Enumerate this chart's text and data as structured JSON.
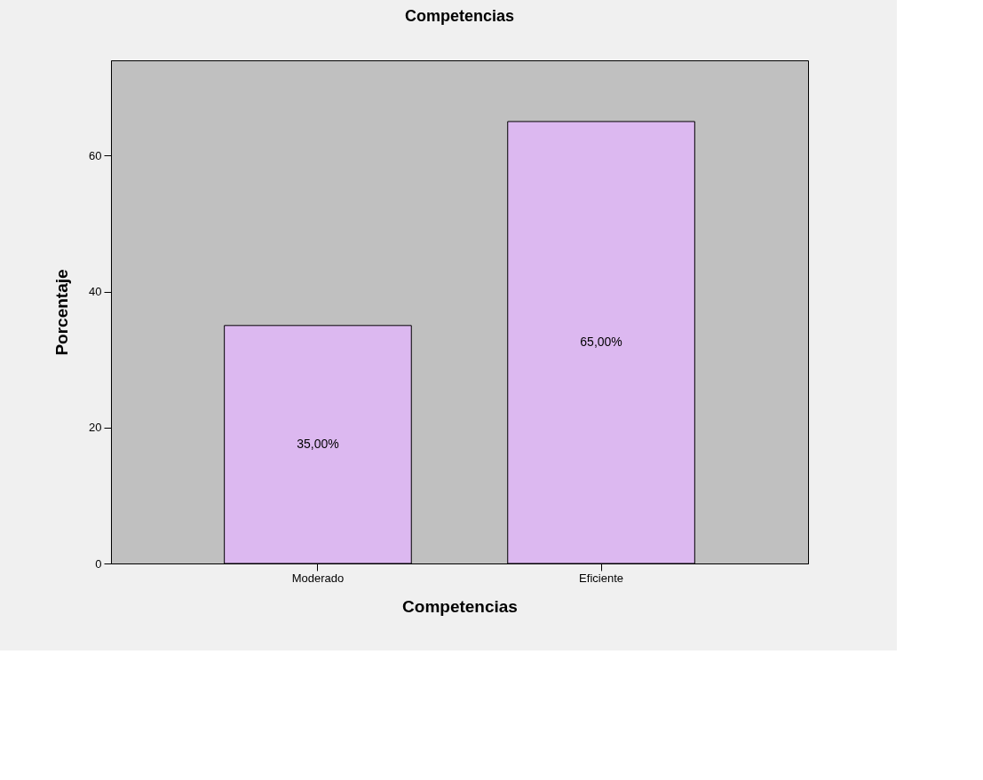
{
  "chart_data": {
    "type": "bar",
    "title": "Competencias",
    "xlabel": "Competencias",
    "ylabel": "Porcentaje",
    "categories": [
      "Moderado",
      "Eficiente"
    ],
    "values": [
      35,
      65
    ],
    "colors": [
      "#dcb8f0",
      "#dcb8f0"
    ],
    "value_labels": [
      "35,00%",
      "65,00%"
    ],
    "ylim": [
      0,
      74
    ],
    "yticks": [
      0,
      20,
      40,
      60
    ],
    "grid": false
  }
}
